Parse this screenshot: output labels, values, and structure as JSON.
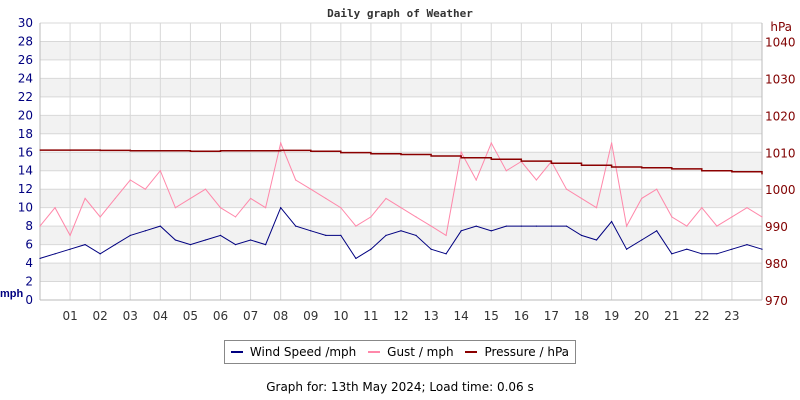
{
  "chart_data": {
    "type": "line",
    "title": "Daily graph of Weather",
    "left_axis": {
      "label": "mph",
      "range": [
        0,
        30
      ],
      "ticks": [
        0,
        2,
        4,
        6,
        8,
        10,
        12,
        14,
        16,
        18,
        20,
        22,
        24,
        26,
        28,
        30
      ]
    },
    "right_axis": {
      "label": "hPa",
      "range": [
        970,
        1045
      ],
      "ticks": [
        970,
        980,
        990,
        1000,
        1010,
        1020,
        1030,
        1040
      ]
    },
    "x_axis": {
      "range": [
        0,
        24
      ],
      "tick_labels": [
        "01",
        "02",
        "03",
        "04",
        "05",
        "06",
        "07",
        "08",
        "09",
        "10",
        "11",
        "12",
        "13",
        "14",
        "15",
        "16",
        "17",
        "18",
        "19",
        "20",
        "21",
        "22",
        "23"
      ]
    },
    "grid": true,
    "legend_position": "bottom",
    "series": [
      {
        "name": "Wind Speed /mph",
        "color": "#000080",
        "axis": "left",
        "x_step_hours": 0.5,
        "values": [
          4.5,
          5,
          5.5,
          6,
          5,
          6,
          7,
          7.5,
          8,
          6.5,
          6,
          6.5,
          7,
          6,
          6.5,
          6,
          10,
          8,
          7.5,
          7,
          7,
          4.5,
          5.5,
          7,
          7.5,
          7,
          5.5,
          5,
          7.5,
          8,
          7.5,
          8,
          8,
          8,
          8,
          8,
          7,
          6.5,
          8.5,
          5.5,
          6.5,
          7.5,
          5,
          5.5,
          5,
          5,
          5.5,
          6,
          5.5
        ]
      },
      {
        "name": "Gust / mph",
        "color": "#ff88aa",
        "axis": "left",
        "x_step_hours": 0.5,
        "values": [
          8,
          10,
          7,
          11,
          9,
          11,
          13,
          12,
          14,
          10,
          11,
          12,
          10,
          9,
          11,
          10,
          17,
          13,
          12,
          11,
          10,
          8,
          9,
          11,
          10,
          9,
          8,
          7,
          16,
          13,
          17,
          14,
          15,
          13,
          15,
          12,
          11,
          10,
          17,
          8,
          11,
          12,
          9,
          8,
          10,
          8,
          9,
          10,
          9
        ]
      },
      {
        "name": "Pressure / hPa",
        "color": "#8b0000",
        "axis": "right",
        "x_step_hours": 1,
        "values": [
          1010.6,
          1010.6,
          1010.5,
          1010.4,
          1010.4,
          1010.3,
          1010.4,
          1010.4,
          1010.5,
          1010.3,
          1009.9,
          1009.6,
          1009.4,
          1009.0,
          1008.5,
          1008.1,
          1007.6,
          1007.0,
          1006.5,
          1006.0,
          1005.8,
          1005.5,
          1005.0,
          1004.7,
          1004.1
        ]
      }
    ]
  },
  "footer": "Graph for: 13th May 2024; Load time: 0.06 s"
}
